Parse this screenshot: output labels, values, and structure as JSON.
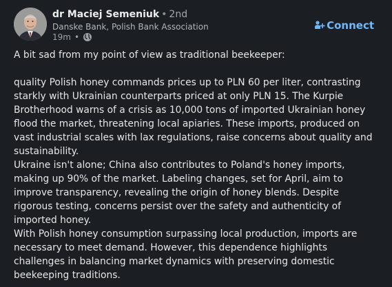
{
  "author": {
    "name": "dr Maciej Semeniuk",
    "separator": "•",
    "degree": "2nd",
    "headline": "Danske Bank, Polish Bank Association",
    "time": "19m",
    "visibility_icon": "globe-icon",
    "avatar_icon": "profile-photo"
  },
  "actions": {
    "connect_label": "Connect",
    "connect_icon": "add-person-icon",
    "accent_color": "#71b7fb"
  },
  "post": {
    "paragraphs": [
      "A bit sad from my point of view as traditional beekeeper:",
      "",
      "quality Polish honey commands prices up to PLN 60 per liter, contrasting starkly with Ukrainian counterparts priced at only PLN 15. The Kurpie Brotherhood warns of a crisis as 10,000 tons of imported Ukrainian honey flood the market, threatening local apiaries. These imports, produced on vast industrial scales with lax regulations, raise concerns about quality and sustainability.",
      "Ukraine isn't alone; China also contributes to Poland's honey imports, making up 90% of the market. Labeling changes, set for April, aim to improve transparency, revealing the origin of honey blends. Despite rigorous testing, concerns persist over the safety and authenticity of imported honey.",
      "With Polish honey consumption surpassing local production, imports are necessary to meet demand. However, this dependence highlights challenges in balancing market dynamics with preserving domestic beekeeping traditions."
    ]
  }
}
